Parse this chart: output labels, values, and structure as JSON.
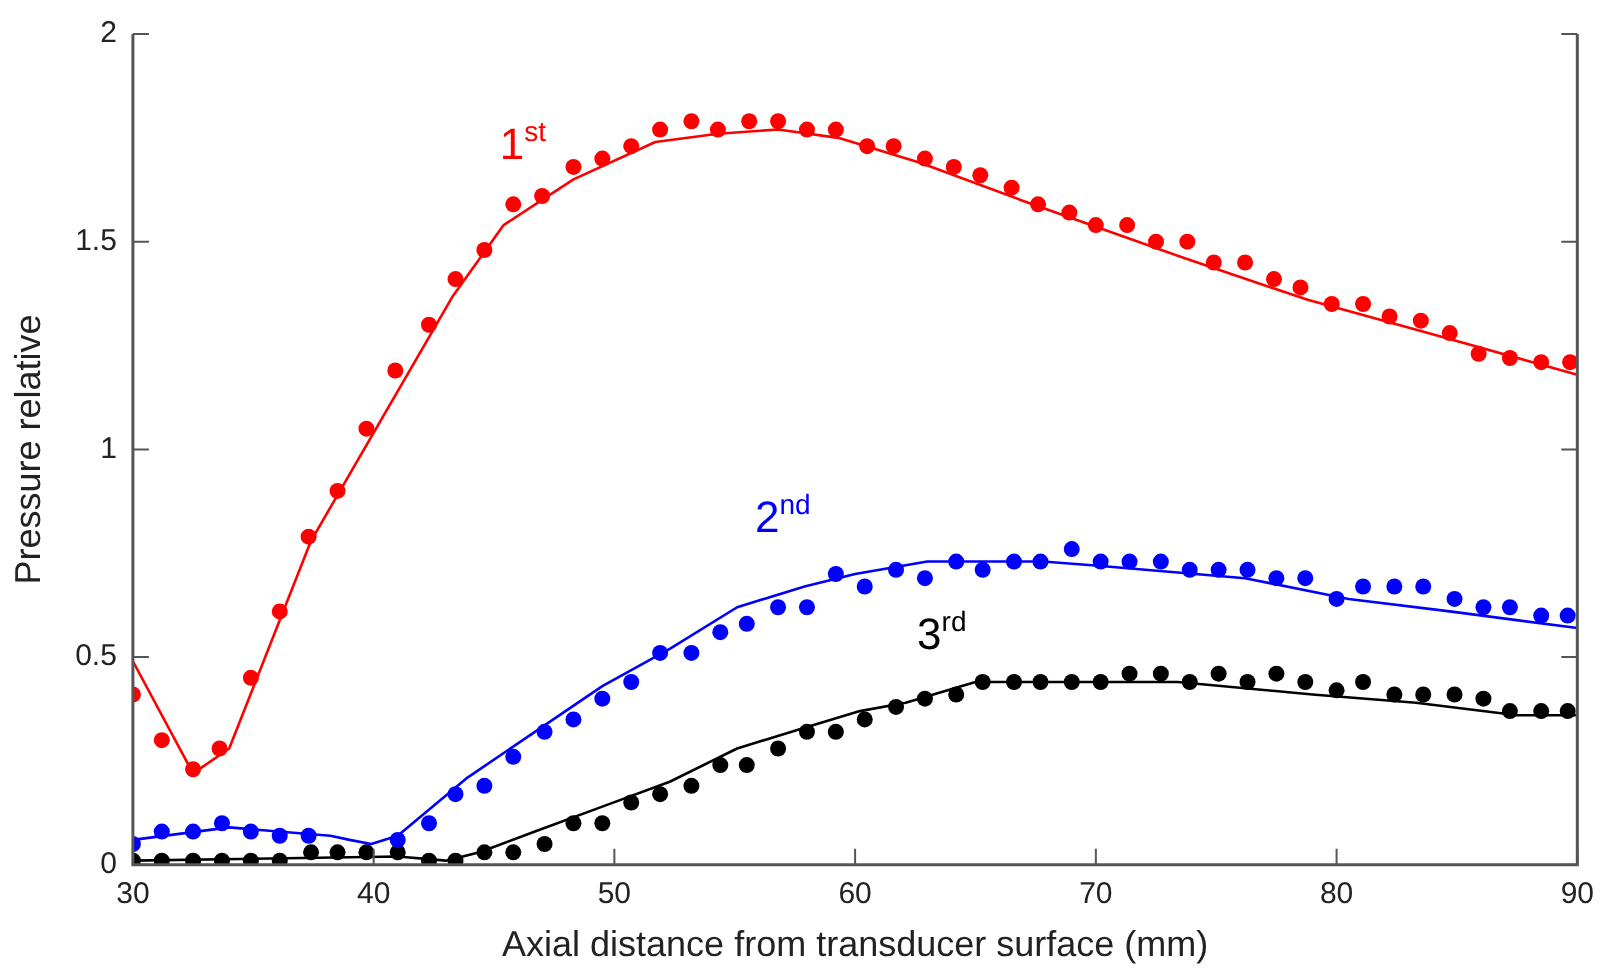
{
  "chart_data": {
    "type": "line",
    "xlabel": "Axial distance from transducer surface (mm)",
    "ylabel": "Pressure relative",
    "xlim": [
      30,
      90
    ],
    "xticks": [
      30,
      40,
      50,
      60,
      70,
      80,
      90
    ],
    "ylim": [
      0,
      2
    ],
    "yticks": [
      0,
      0.5,
      1,
      1.5,
      2
    ],
    "grid": false,
    "legend": false,
    "series": [
      {
        "type": "scatter",
        "name": "1$^{st}$",
        "marker": "circle",
        "color": "#ff0000",
        "x": [
          30,
          31.2,
          32.5,
          33.6,
          34.9,
          36.1,
          37.3,
          38.5,
          39.7,
          40.9,
          42.3,
          43.4,
          44.6,
          45.8,
          47,
          48.3,
          49.5,
          50.7,
          51.9,
          53.2,
          54.3,
          55.6,
          56.8,
          58,
          59.2,
          60.5,
          61.6,
          62.9,
          64.1,
          65.2,
          66.5,
          67.6,
          68.9,
          70,
          71.3,
          72.5,
          73.8,
          74.9,
          76.2,
          77.4,
          78.5,
          79.8,
          81.1,
          82.2,
          83.5,
          84.7,
          85.9,
          87.2,
          88.5,
          89.7
        ],
        "values": [
          0.41,
          0.3,
          0.23,
          0.28,
          0.45,
          0.61,
          0.79,
          0.9,
          1.05,
          1.19,
          1.3,
          1.41,
          1.48,
          1.59,
          1.61,
          1.68,
          1.7,
          1.73,
          1.77,
          1.79,
          1.77,
          1.79,
          1.79,
          1.77,
          1.77,
          1.73,
          1.73,
          1.7,
          1.68,
          1.66,
          1.63,
          1.59,
          1.57,
          1.54,
          1.54,
          1.5,
          1.5,
          1.45,
          1.45,
          1.41,
          1.39,
          1.35,
          1.35,
          1.32,
          1.31,
          1.28,
          1.23,
          1.22,
          1.21,
          1.21
        ]
      },
      {
        "marker": "none",
        "color": "#ff0000",
        "x": [
          30,
          32.5,
          34,
          37.4,
          43.3,
          45.4,
          48.3,
          51.7,
          54.3,
          56.8,
          59.3,
          62.7,
          66.9,
          73.7,
          78.8,
          83.8,
          90
        ],
        "values": [
          0.49,
          0.22,
          0.28,
          0.78,
          1.37,
          1.54,
          1.65,
          1.74,
          1.76,
          1.77,
          1.75,
          1.69,
          1.6,
          1.46,
          1.36,
          1.28,
          1.18
        ]
      },
      {
        "type": "scatter",
        "name": "2$^{nd}$",
        "marker": "circle",
        "color": "#0000ff",
        "x": [
          30,
          31.2,
          32.5,
          33.7,
          34.9,
          36.1,
          37.3,
          41,
          42.3,
          43.4,
          44.6,
          45.8,
          47.1,
          48.3,
          49.5,
          50.7,
          51.9,
          53.2,
          54.4,
          55.5,
          56.8,
          58,
          59.2,
          60.4,
          61.7,
          62.9,
          64.2,
          65.3,
          66.6,
          67.7,
          69,
          70.2,
          71.4,
          72.7,
          73.9,
          75.1,
          76.3,
          77.5,
          78.7,
          80,
          81.1,
          82.4,
          83.6,
          84.9,
          86.1,
          87.2,
          88.5,
          89.6
        ],
        "values": [
          0.05,
          0.08,
          0.08,
          0.1,
          0.08,
          0.07,
          0.07,
          0.06,
          0.1,
          0.17,
          0.19,
          0.26,
          0.32,
          0.35,
          0.4,
          0.44,
          0.51,
          0.51,
          0.56,
          0.58,
          0.62,
          0.62,
          0.7,
          0.67,
          0.71,
          0.69,
          0.73,
          0.71,
          0.73,
          0.73,
          0.76,
          0.73,
          0.73,
          0.73,
          0.71,
          0.71,
          0.71,
          0.69,
          0.69,
          0.64,
          0.67,
          0.67,
          0.67,
          0.64,
          0.62,
          0.62,
          0.6,
          0.6
        ]
      },
      {
        "marker": "none",
        "color": "#0000ff",
        "x": [
          30,
          34,
          38.2,
          39,
          39.9,
          41,
          43.9,
          46.7,
          49.5,
          52.3,
          55.1,
          57.9,
          60,
          63,
          67.8,
          70.1,
          76.2,
          80.5,
          84.7,
          90
        ],
        "values": [
          0.06,
          0.09,
          0.07,
          0.06,
          0.05,
          0.07,
          0.21,
          0.32,
          0.43,
          0.52,
          0.62,
          0.67,
          0.7,
          0.73,
          0.73,
          0.72,
          0.69,
          0.64,
          0.61,
          0.57
        ]
      },
      {
        "type": "scatter",
        "name": "3$^{rd}$",
        "marker": "circle",
        "color": "#000000",
        "x": [
          30,
          31.2,
          32.5,
          33.7,
          34.9,
          36.1,
          37.4,
          38.5,
          39.7,
          41,
          42.3,
          43.4,
          44.6,
          45.8,
          47.1,
          48.3,
          49.5,
          50.7,
          51.9,
          53.2,
          54.4,
          55.5,
          56.8,
          58,
          59.2,
          60.4,
          61.7,
          62.9,
          64.2,
          65.3,
          66.6,
          67.7,
          69,
          70.2,
          71.4,
          72.7,
          73.9,
          75.1,
          76.3,
          77.5,
          78.7,
          80,
          81.1,
          82.4,
          83.6,
          84.9,
          86.1,
          87.2,
          88.5,
          89.6
        ],
        "values": [
          0.01,
          0.01,
          0.01,
          0.01,
          0.01,
          0.01,
          0.03,
          0.03,
          0.03,
          0.03,
          0.01,
          0.01,
          0.03,
          0.03,
          0.05,
          0.1,
          0.1,
          0.15,
          0.17,
          0.19,
          0.24,
          0.24,
          0.28,
          0.32,
          0.32,
          0.35,
          0.38,
          0.4,
          0.41,
          0.44,
          0.44,
          0.44,
          0.44,
          0.44,
          0.46,
          0.46,
          0.44,
          0.46,
          0.44,
          0.46,
          0.44,
          0.42,
          0.44,
          0.41,
          0.41,
          0.41,
          0.4,
          0.37,
          0.37,
          0.37
        ]
      },
      {
        "marker": "none",
        "color": "#000000",
        "x": [
          30,
          41,
          43,
          44.4,
          46.7,
          49.5,
          52.3,
          55.1,
          57.9,
          60.2,
          62.1,
          65,
          69.2,
          73.4,
          79,
          83.3,
          87.5,
          90
        ],
        "values": [
          0.01,
          0.02,
          0.01,
          0.03,
          0.08,
          0.14,
          0.2,
          0.28,
          0.33,
          0.37,
          0.39,
          0.44,
          0.44,
          0.44,
          0.41,
          0.39,
          0.36,
          0.36
        ]
      }
    ]
  }
}
